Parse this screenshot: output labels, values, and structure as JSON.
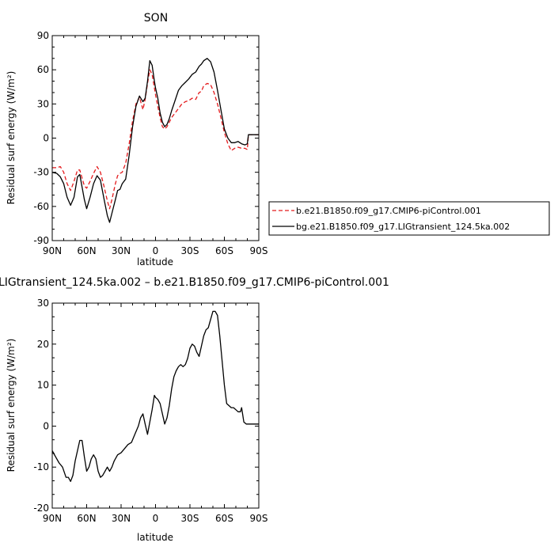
{
  "chart_data": [
    {
      "type": "line",
      "title": "SON",
      "xlabel": "latitude",
      "ylabel": "Residual surf energy (W/m²)",
      "xlim": [
        90,
        -90
      ],
      "ylim": [
        -90,
        90
      ],
      "x_ticks": [
        90,
        60,
        30,
        0,
        -30,
        -60,
        -90
      ],
      "x_tick_labels": [
        "90N",
        "60N",
        "30N",
        "0",
        "30S",
        "60S",
        "90S"
      ],
      "y_ticks": [
        -90,
        -60,
        -30,
        0,
        30,
        60,
        90
      ],
      "y_tick_labels": [
        "-90",
        "-60",
        "-30",
        "0",
        "30",
        "60",
        "90"
      ],
      "grid": false,
      "legend": "right",
      "series": [
        {
          "name": "b.e21.B1850.f09_g17.CMIP6-piControl.001",
          "color": "#e41a1c",
          "dash": "dashed",
          "x": [
            90,
            86,
            83,
            80,
            77,
            74,
            71,
            68,
            66,
            64,
            62,
            60,
            57,
            54,
            51,
            48,
            45,
            42,
            40,
            38,
            35,
            33,
            31,
            29,
            26,
            23,
            20,
            17,
            14,
            11,
            9,
            7,
            5,
            3,
            1,
            0,
            -2,
            -4,
            -6,
            -8,
            -10,
            -12,
            -14,
            -17,
            -20,
            -23,
            -26,
            -29,
            -32,
            -35,
            -38,
            -40,
            -42,
            -45,
            -48,
            -51,
            -54,
            -57,
            -60,
            -63,
            -66,
            -69,
            -72,
            -75,
            -78,
            -80,
            -81,
            -84,
            -87,
            -90
          ],
          "y": [
            -26,
            -26,
            -25,
            -30,
            -40,
            -46,
            -38,
            -28,
            -28,
            -35,
            -42,
            -44,
            -38,
            -31,
            -25,
            -30,
            -42,
            -55,
            -62,
            -54,
            -40,
            -33,
            -31,
            -30,
            -22,
            -5,
            15,
            30,
            36,
            25,
            34,
            48,
            60,
            56,
            44,
            38,
            28,
            18,
            10,
            8,
            10,
            14,
            18,
            22,
            26,
            30,
            32,
            33,
            35,
            34,
            40,
            41,
            46,
            48,
            47,
            40,
            30,
            18,
            5,
            -5,
            -11,
            -9,
            -8,
            -9,
            -9,
            -10,
            3,
            3,
            3,
            3
          ]
        },
        {
          "name": "bg.e21.B1850.f09_g17.LIGtransient_124.5ka.002",
          "color": "#000000",
          "dash": "solid",
          "x": [
            90,
            86,
            83,
            80,
            77,
            74,
            71,
            68,
            66,
            64,
            62,
            60,
            57,
            54,
            51,
            48,
            45,
            42,
            40,
            38,
            35,
            33,
            31,
            29,
            26,
            23,
            20,
            17,
            14,
            11,
            9,
            7,
            5,
            3,
            1,
            0,
            -2,
            -4,
            -6,
            -8,
            -10,
            -12,
            -14,
            -17,
            -20,
            -23,
            -26,
            -29,
            -32,
            -35,
            -38,
            -40,
            -42,
            -45,
            -48,
            -51,
            -54,
            -57,
            -60,
            -63,
            -66,
            -69,
            -72,
            -75,
            -78,
            -80,
            -81,
            -84,
            -87,
            -90
          ],
          "y": [
            -30,
            -31,
            -34,
            -40,
            -52,
            -59,
            -52,
            -34,
            -32,
            -43,
            -54,
            -62,
            -52,
            -40,
            -33,
            -37,
            -53,
            -68,
            -74,
            -66,
            -54,
            -46,
            -45,
            -40,
            -36,
            -15,
            10,
            28,
            37,
            32,
            35,
            50,
            68,
            64,
            50,
            44,
            35,
            22,
            14,
            10,
            12,
            17,
            24,
            33,
            42,
            46,
            49,
            52,
            56,
            58,
            63,
            65,
            68,
            70,
            67,
            58,
            42,
            25,
            8,
            0,
            -4,
            -4,
            -3,
            -5,
            -6,
            -5,
            3,
            3,
            3,
            3
          ]
        }
      ]
    },
    {
      "type": "line",
      "title": "LIGtransient_124.5ka.002 – b.e21.B1850.f09_g17.CMIP6-piControl.001",
      "xlabel": "latitude",
      "ylabel": "Residual surf energy (W/m²)",
      "xlim": [
        90,
        -90
      ],
      "ylim": [
        -20,
        30
      ],
      "x_ticks": [
        90,
        60,
        30,
        0,
        -30,
        -60,
        -90
      ],
      "x_tick_labels": [
        "90N",
        "60N",
        "30N",
        "0",
        "30S",
        "60S",
        "90S"
      ],
      "y_ticks": [
        -20,
        -10,
        0,
        10,
        20,
        30
      ],
      "y_tick_labels": [
        "-20",
        "-10",
        "0",
        "10",
        "20",
        "30"
      ],
      "grid": false,
      "series": [
        {
          "color": "#000000",
          "dash": "solid",
          "x": [
            90,
            87,
            84,
            81,
            78,
            76,
            74,
            72,
            70,
            68,
            66,
            64,
            62,
            60,
            58,
            56,
            54,
            52,
            50,
            48,
            46,
            44,
            42,
            40,
            38,
            36,
            33,
            30,
            27,
            24,
            21,
            18,
            15,
            13,
            11,
            9,
            7,
            5,
            3,
            1,
            0,
            -2,
            -4,
            -6,
            -8,
            -10,
            -12,
            -14,
            -16,
            -18,
            -20,
            -22,
            -24,
            -26,
            -28,
            -30,
            -32,
            -34,
            -36,
            -38,
            -40,
            -42,
            -44,
            -46,
            -48,
            -50,
            -52,
            -54,
            -56,
            -58,
            -60,
            -62,
            -64,
            -66,
            -68,
            -70,
            -72,
            -74,
            -75,
            -77,
            -79,
            -81,
            -84,
            -87,
            -90
          ],
          "y": [
            -6,
            -7.5,
            -9,
            -10,
            -12.5,
            -12.5,
            -13.5,
            -12,
            -8.5,
            -6,
            -3.5,
            -3.5,
            -7.5,
            -11,
            -10,
            -8,
            -7,
            -8,
            -11,
            -12.5,
            -12,
            -11,
            -10,
            -11,
            -10,
            -8.5,
            -7,
            -6.5,
            -5.5,
            -4.5,
            -4,
            -2,
            0,
            2,
            3,
            0.5,
            -2,
            1,
            4,
            7.5,
            7,
            6.5,
            5.5,
            3,
            0.5,
            2,
            5,
            9,
            12,
            13.5,
            14.5,
            15,
            14.5,
            15,
            16.5,
            19,
            20,
            19.5,
            18,
            17,
            19.5,
            22,
            23.5,
            24,
            26,
            28,
            28,
            27,
            22,
            16,
            10,
            5.5,
            5,
            4.5,
            4.5,
            4,
            3.5,
            3.5,
            4.5,
            1,
            0.5,
            0.5,
            0.5,
            0.5,
            0.5
          ]
        }
      ]
    }
  ]
}
